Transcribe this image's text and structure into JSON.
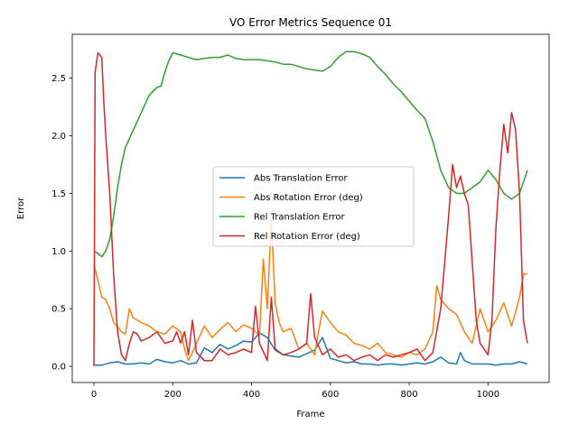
{
  "chart_data": {
    "type": "line",
    "title": "VO Error Metrics Sequence 01",
    "xlabel": "Frame",
    "ylabel": "Error",
    "xlim": [
      -55,
      1155
    ],
    "ylim": [
      -0.14,
      2.88
    ],
    "xticks": [
      0,
      200,
      400,
      600,
      800,
      1000
    ],
    "yticks": [
      0.0,
      0.5,
      1.0,
      1.5,
      2.0,
      2.5
    ],
    "grid": false,
    "legend": "center",
    "series": [
      {
        "name": "Abs Translation Error",
        "color": "#1f77b4",
        "points": [
          [
            0,
            0.01
          ],
          [
            20,
            0.01
          ],
          [
            40,
            0.03
          ],
          [
            60,
            0.04
          ],
          [
            80,
            0.02
          ],
          [
            100,
            0.02
          ],
          [
            120,
            0.03
          ],
          [
            140,
            0.02
          ],
          [
            160,
            0.06
          ],
          [
            180,
            0.04
          ],
          [
            200,
            0.03
          ],
          [
            220,
            0.05
          ],
          [
            240,
            0.02
          ],
          [
            260,
            0.03
          ],
          [
            280,
            0.16
          ],
          [
            300,
            0.12
          ],
          [
            320,
            0.19
          ],
          [
            340,
            0.15
          ],
          [
            360,
            0.18
          ],
          [
            380,
            0.22
          ],
          [
            400,
            0.21
          ],
          [
            420,
            0.29
          ],
          [
            440,
            0.25
          ],
          [
            460,
            0.14
          ],
          [
            480,
            0.1
          ],
          [
            500,
            0.09
          ],
          [
            520,
            0.08
          ],
          [
            540,
            0.11
          ],
          [
            560,
            0.14
          ],
          [
            580,
            0.25
          ],
          [
            600,
            0.07
          ],
          [
            620,
            0.05
          ],
          [
            640,
            0.03
          ],
          [
            660,
            0.04
          ],
          [
            680,
            0.02
          ],
          [
            700,
            0.02
          ],
          [
            720,
            0.01
          ],
          [
            740,
            0.02
          ],
          [
            760,
            0.02
          ],
          [
            780,
            0.01
          ],
          [
            800,
            0.02
          ],
          [
            820,
            0.03
          ],
          [
            840,
            0.02
          ],
          [
            860,
            0.04
          ],
          [
            880,
            0.08
          ],
          [
            900,
            0.03
          ],
          [
            920,
            0.02
          ],
          [
            930,
            0.12
          ],
          [
            940,
            0.05
          ],
          [
            960,
            0.02
          ],
          [
            980,
            0.02
          ],
          [
            1000,
            0.02
          ],
          [
            1020,
            0.01
          ],
          [
            1040,
            0.02
          ],
          [
            1060,
            0.02
          ],
          [
            1080,
            0.04
          ],
          [
            1100,
            0.02
          ]
        ]
      },
      {
        "name": "Abs Rotation Error (deg)",
        "color": "#ff7f0e",
        "points": [
          [
            0,
            0.88
          ],
          [
            10,
            0.75
          ],
          [
            20,
            0.6
          ],
          [
            30,
            0.58
          ],
          [
            40,
            0.5
          ],
          [
            50,
            0.38
          ],
          [
            60,
            0.34
          ],
          [
            70,
            0.3
          ],
          [
            80,
            0.28
          ],
          [
            90,
            0.5
          ],
          [
            100,
            0.42
          ],
          [
            120,
            0.38
          ],
          [
            140,
            0.35
          ],
          [
            160,
            0.3
          ],
          [
            180,
            0.28
          ],
          [
            200,
            0.35
          ],
          [
            220,
            0.3
          ],
          [
            230,
            0.15
          ],
          [
            240,
            0.05
          ],
          [
            250,
            0.12
          ],
          [
            260,
            0.2
          ],
          [
            280,
            0.35
          ],
          [
            300,
            0.25
          ],
          [
            320,
            0.32
          ],
          [
            340,
            0.38
          ],
          [
            360,
            0.3
          ],
          [
            380,
            0.36
          ],
          [
            400,
            0.33
          ],
          [
            420,
            0.27
          ],
          [
            430,
            0.93
          ],
          [
            440,
            0.5
          ],
          [
            450,
            1.28
          ],
          [
            460,
            0.55
          ],
          [
            470,
            0.38
          ],
          [
            480,
            0.3
          ],
          [
            500,
            0.33
          ],
          [
            520,
            0.15
          ],
          [
            540,
            0.2
          ],
          [
            560,
            0.1
          ],
          [
            570,
            0.3
          ],
          [
            580,
            0.48
          ],
          [
            600,
            0.38
          ],
          [
            620,
            0.3
          ],
          [
            640,
            0.27
          ],
          [
            660,
            0.2
          ],
          [
            680,
            0.18
          ],
          [
            700,
            0.15
          ],
          [
            720,
            0.2
          ],
          [
            740,
            0.12
          ],
          [
            760,
            0.1
          ],
          [
            780,
            0.08
          ],
          [
            800,
            0.12
          ],
          [
            820,
            0.1
          ],
          [
            840,
            0.15
          ],
          [
            860,
            0.3
          ],
          [
            870,
            0.7
          ],
          [
            880,
            0.58
          ],
          [
            900,
            0.5
          ],
          [
            920,
            0.45
          ],
          [
            940,
            0.3
          ],
          [
            960,
            0.2
          ],
          [
            980,
            0.5
          ],
          [
            1000,
            0.3
          ],
          [
            1020,
            0.4
          ],
          [
            1040,
            0.55
          ],
          [
            1060,
            0.35
          ],
          [
            1080,
            0.6
          ],
          [
            1090,
            0.8
          ],
          [
            1100,
            0.8
          ]
        ]
      },
      {
        "name": "Rel Translation Error",
        "color": "#2ca02c",
        "points": [
          [
            0,
            1.0
          ],
          [
            10,
            0.98
          ],
          [
            20,
            0.95
          ],
          [
            30,
            1.0
          ],
          [
            40,
            1.1
          ],
          [
            50,
            1.3
          ],
          [
            60,
            1.55
          ],
          [
            70,
            1.75
          ],
          [
            80,
            1.9
          ],
          [
            100,
            2.05
          ],
          [
            120,
            2.2
          ],
          [
            140,
            2.35
          ],
          [
            160,
            2.42
          ],
          [
            170,
            2.43
          ],
          [
            180,
            2.55
          ],
          [
            190,
            2.65
          ],
          [
            200,
            2.72
          ],
          [
            220,
            2.7
          ],
          [
            240,
            2.68
          ],
          [
            260,
            2.66
          ],
          [
            280,
            2.67
          ],
          [
            300,
            2.68
          ],
          [
            320,
            2.68
          ],
          [
            340,
            2.7
          ],
          [
            360,
            2.67
          ],
          [
            380,
            2.66
          ],
          [
            400,
            2.66
          ],
          [
            420,
            2.66
          ],
          [
            440,
            2.65
          ],
          [
            460,
            2.64
          ],
          [
            480,
            2.62
          ],
          [
            500,
            2.62
          ],
          [
            520,
            2.6
          ],
          [
            540,
            2.58
          ],
          [
            560,
            2.57
          ],
          [
            580,
            2.56
          ],
          [
            600,
            2.6
          ],
          [
            620,
            2.68
          ],
          [
            640,
            2.73
          ],
          [
            660,
            2.73
          ],
          [
            680,
            2.71
          ],
          [
            700,
            2.68
          ],
          [
            720,
            2.6
          ],
          [
            740,
            2.53
          ],
          [
            760,
            2.45
          ],
          [
            780,
            2.38
          ],
          [
            800,
            2.3
          ],
          [
            820,
            2.22
          ],
          [
            840,
            2.15
          ],
          [
            860,
            1.95
          ],
          [
            880,
            1.7
          ],
          [
            900,
            1.55
          ],
          [
            920,
            1.5
          ],
          [
            940,
            1.5
          ],
          [
            960,
            1.55
          ],
          [
            980,
            1.6
          ],
          [
            1000,
            1.7
          ],
          [
            1020,
            1.62
          ],
          [
            1040,
            1.5
          ],
          [
            1060,
            1.45
          ],
          [
            1080,
            1.5
          ],
          [
            1100,
            1.7
          ]
        ]
      },
      {
        "name": "Rel Rotation Error (deg)",
        "color": "#d62728",
        "points": [
          [
            0,
            0.0
          ],
          [
            3,
            2.55
          ],
          [
            10,
            2.72
          ],
          [
            20,
            2.68
          ],
          [
            25,
            2.3
          ],
          [
            30,
            2.0
          ],
          [
            40,
            1.5
          ],
          [
            50,
            0.8
          ],
          [
            60,
            0.3
          ],
          [
            70,
            0.1
          ],
          [
            80,
            0.05
          ],
          [
            90,
            0.2
          ],
          [
            100,
            0.3
          ],
          [
            110,
            0.28
          ],
          [
            120,
            0.22
          ],
          [
            140,
            0.25
          ],
          [
            160,
            0.3
          ],
          [
            180,
            0.2
          ],
          [
            200,
            0.22
          ],
          [
            210,
            0.3
          ],
          [
            220,
            0.2
          ],
          [
            230,
            0.3
          ],
          [
            240,
            0.1
          ],
          [
            250,
            0.4
          ],
          [
            260,
            0.12
          ],
          [
            280,
            0.05
          ],
          [
            300,
            0.05
          ],
          [
            320,
            0.15
          ],
          [
            340,
            0.1
          ],
          [
            360,
            0.12
          ],
          [
            380,
            0.15
          ],
          [
            400,
            0.12
          ],
          [
            410,
            0.52
          ],
          [
            420,
            0.2
          ],
          [
            440,
            0.05
          ],
          [
            450,
            0.6
          ],
          [
            460,
            0.15
          ],
          [
            480,
            0.1
          ],
          [
            500,
            0.12
          ],
          [
            520,
            0.15
          ],
          [
            540,
            0.2
          ],
          [
            550,
            0.63
          ],
          [
            560,
            0.25
          ],
          [
            580,
            0.1
          ],
          [
            600,
            0.15
          ],
          [
            620,
            0.08
          ],
          [
            640,
            0.1
          ],
          [
            660,
            0.05
          ],
          [
            680,
            0.08
          ],
          [
            700,
            0.1
          ],
          [
            720,
            0.05
          ],
          [
            740,
            0.1
          ],
          [
            760,
            0.08
          ],
          [
            780,
            0.1
          ],
          [
            800,
            0.12
          ],
          [
            820,
            0.15
          ],
          [
            840,
            0.05
          ],
          [
            860,
            0.12
          ],
          [
            880,
            0.5
          ],
          [
            890,
            0.9
          ],
          [
            900,
            1.3
          ],
          [
            910,
            1.75
          ],
          [
            920,
            1.55
          ],
          [
            930,
            1.65
          ],
          [
            940,
            1.5
          ],
          [
            950,
            1.4
          ],
          [
            960,
            0.9
          ],
          [
            970,
            0.4
          ],
          [
            980,
            0.2
          ],
          [
            1000,
            0.1
          ],
          [
            1010,
            0.4
          ],
          [
            1020,
            1.2
          ],
          [
            1030,
            1.7
          ],
          [
            1040,
            2.1
          ],
          [
            1050,
            1.85
          ],
          [
            1060,
            2.2
          ],
          [
            1070,
            2.05
          ],
          [
            1080,
            1.5
          ],
          [
            1090,
            0.4
          ],
          [
            1100,
            0.2
          ]
        ]
      }
    ]
  }
}
